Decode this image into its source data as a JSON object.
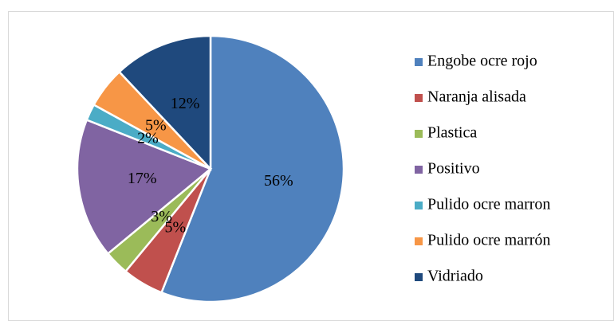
{
  "chart_data": {
    "type": "pie",
    "categories": [
      "Engobe ocre rojo",
      "Naranja alisada",
      "Plastica",
      "Positivo",
      "Pulido ocre marron",
      "Pulido ocre marrón",
      "Vidriado"
    ],
    "values": [
      56,
      5,
      3,
      17,
      2,
      5,
      12
    ],
    "value_labels": [
      "56%",
      "5%",
      "3%",
      "17%",
      "2%",
      "5%",
      "12%"
    ],
    "colors": [
      "#4f81bd",
      "#c0504d",
      "#9bbb59",
      "#8064a2",
      "#4bacc6",
      "#f79646",
      "#1f497d"
    ],
    "legend": "right"
  }
}
